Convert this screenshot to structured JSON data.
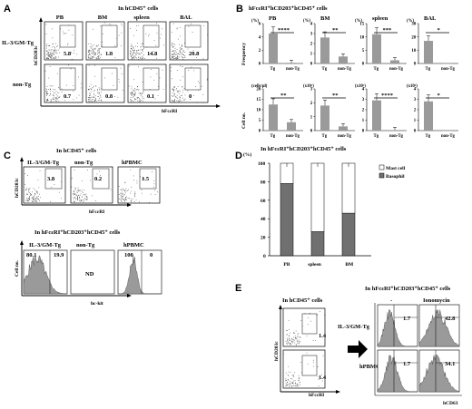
{
  "panels": {
    "A": {
      "label": "A",
      "title": "In hCD45⁺ cells",
      "columns": [
        "PB",
        "BM",
        "spleen",
        "BAL"
      ],
      "rows": [
        "IL-3/GM-Tg",
        "non-Tg"
      ],
      "values": [
        [
          "5.8",
          "1.8",
          "14.8",
          "20.8"
        ],
        [
          "0.7",
          "0.8",
          "0.1",
          "0"
        ]
      ],
      "ylabel": "hCD203c",
      "xlabel": "hFcεRI"
    },
    "B": {
      "label": "B",
      "title": "hFcεRI⁺hCD203⁺hCD45⁺ cells",
      "chart_data": [
        {
          "type": "bar",
          "title": "PB",
          "unit": "(%)",
          "ylabel": "Frequency",
          "categories": [
            "Tg",
            "non-Tg"
          ],
          "values": [
            4.5,
            0.1
          ],
          "yticks": [
            "0",
            "2",
            "4",
            "6"
          ],
          "sig": "****"
        },
        {
          "type": "bar",
          "title": "BM",
          "unit": "(%)",
          "categories": [
            "Tg",
            "non-Tg"
          ],
          "values": [
            2.6,
            0.7
          ],
          "yticks": [
            "0",
            "1",
            "2",
            "3",
            "4"
          ],
          "sig": "**"
        },
        {
          "type": "bar",
          "title": "spleen",
          "unit": "(%)",
          "categories": [
            "Tg",
            "non-Tg"
          ],
          "values": [
            11,
            1.2
          ],
          "yticks": [
            "0",
            "5",
            "10",
            "15"
          ],
          "sig": "***"
        },
        {
          "type": "bar",
          "title": "BAL",
          "unit": "(%)",
          "categories": [
            "Tg",
            "non-Tg"
          ],
          "values": [
            17,
            0
          ],
          "yticks": [
            "0",
            "10",
            "20",
            "30"
          ],
          "sig": "*"
        },
        {
          "type": "bar",
          "unit": "(cells/μl)",
          "ylabel": "Cell no.",
          "categories": [
            "Tg",
            "non-Tg"
          ],
          "values": [
            12.5,
            4
          ],
          "yticks": [
            "0",
            "5",
            "10",
            "15",
            "20"
          ],
          "sig": "**"
        },
        {
          "type": "bar",
          "unit": "(x10⁵)",
          "categories": [
            "Tg",
            "non-Tg"
          ],
          "values": [
            1.8,
            0.3
          ],
          "yticks": [
            "0",
            "1",
            "2",
            "3"
          ],
          "sig": "**"
        },
        {
          "type": "bar",
          "unit": "(x10⁵)",
          "categories": [
            "Tg",
            "non-Tg"
          ],
          "values": [
            2.9,
            0.05
          ],
          "yticks": [
            "0",
            "1",
            "2",
            "3",
            "4"
          ],
          "sig": "****"
        },
        {
          "type": "bar",
          "unit": "(x10³)",
          "categories": [
            "Tg",
            "non-Tg"
          ],
          "values": [
            2.8,
            0
          ],
          "yticks": [
            "0",
            "1",
            "2",
            "3",
            "4"
          ],
          "sig": "*"
        }
      ]
    },
    "C": {
      "label": "C",
      "top_title": "In hCD45⁺ cells",
      "top_columns": [
        "IL-3/GM-Tg",
        "non-Tg",
        "hPBMC"
      ],
      "top_values": [
        "3.8",
        "0.2",
        "1.5"
      ],
      "top_ylabel": "hCD203c",
      "top_xlabel": "hFcεRI",
      "bottom_title": "In hFcεRI⁺hCD203⁺hCD45⁺ cells",
      "bottom_columns": [
        "IL-3/GM-Tg",
        "non-Tg",
        "hPBMC"
      ],
      "bottom_values": [
        [
          "80.1",
          "19.9"
        ],
        [
          "ND"
        ],
        [
          "100",
          "0"
        ]
      ],
      "bottom_ylabel": "Cell no.",
      "bottom_xlabel": "hc-kit"
    },
    "D": {
      "label": "D",
      "chart_data": {
        "type": "bar",
        "stacked": true,
        "title": "In hFcεRI⁺hCD203⁺hCD45⁺ cells",
        "unit": "(%)",
        "categories": [
          "PB",
          "spleen",
          "BM"
        ],
        "yticks": [
          "0",
          "20",
          "40",
          "60",
          "80",
          "100"
        ],
        "ylim": [
          0,
          100
        ],
        "series": [
          {
            "name": "Basophil",
            "values": [
              78,
              26,
              46
            ],
            "color": "#707070"
          },
          {
            "name": "Mast cell",
            "values": [
              22,
              74,
              54
            ],
            "color": "#ffffff"
          }
        ]
      }
    },
    "E": {
      "label": "E",
      "left_title": "In hCD45⁺ cells",
      "rows": [
        "IL-3/GM-Tg",
        "hPBMC"
      ],
      "left_values": [
        "1.4",
        "1.4"
      ],
      "left_ylabel": "hCD203c",
      "left_xlabel": "hFcεRI",
      "right_title": "In hFcεRI⁺hCD203⁺hCD45⁺ cells",
      "right_columns": [
        "-",
        "Ionomycin"
      ],
      "right_values": [
        [
          "1.7",
          "42.8"
        ],
        [
          "1.7",
          "34.1"
        ]
      ],
      "right_xlabel": "hCD63"
    }
  },
  "colors": {
    "bar": "#9a9a9a",
    "basophil": "#707070",
    "mastcell": "#ffffff",
    "hist": "#9a9a9a"
  }
}
